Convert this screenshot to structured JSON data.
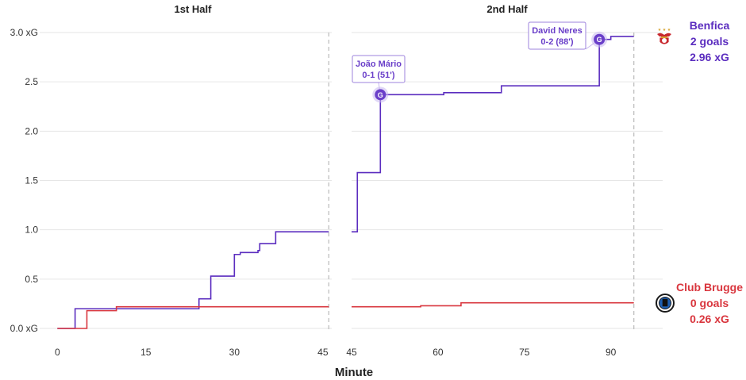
{
  "chart_data": {
    "type": "line",
    "step": true,
    "xlabel": "Minute",
    "panels": [
      {
        "title": "1st Half",
        "xlim": [
          -3,
          46.5
        ],
        "xticks": [
          "0",
          "15",
          "30",
          "45"
        ],
        "xtick_values": [
          0,
          15,
          30,
          45
        ],
        "end_minute": 46,
        "series": [
          {
            "team": "Benfica",
            "points": [
              [
                0,
                0
              ],
              [
                3,
                0.2
              ],
              [
                10,
                0.2
              ],
              [
                24,
                0.3
              ],
              [
                26,
                0.53
              ],
              [
                30,
                0.75
              ],
              [
                31,
                0.77
              ],
              [
                34,
                0.79
              ],
              [
                34.3,
                0.86
              ],
              [
                37,
                0.98
              ],
              [
                46,
                0.98
              ]
            ]
          },
          {
            "team": "Club Brugge",
            "points": [
              [
                0,
                0
              ],
              [
                5,
                0.18
              ],
              [
                10,
                0.22
              ],
              [
                46,
                0.22
              ]
            ]
          }
        ]
      },
      {
        "title": "2nd Half",
        "xlim": [
          45,
          99
        ],
        "xticks": [
          "45",
          "60",
          "75",
          "90"
        ],
        "xtick_values": [
          45,
          60,
          75,
          90
        ],
        "end_minute": 94,
        "series": [
          {
            "team": "Benfica",
            "points": [
              [
                45,
                0.98
              ],
              [
                46,
                1.58
              ],
              [
                50,
                2.37
              ],
              [
                56,
                2.37
              ],
              [
                61,
                2.39
              ],
              [
                71,
                2.46
              ],
              [
                88,
                2.93
              ],
              [
                90,
                2.96
              ],
              [
                94,
                2.96
              ]
            ]
          },
          {
            "team": "Club Brugge",
            "points": [
              [
                45,
                0.22
              ],
              [
                57,
                0.23
              ],
              [
                64,
                0.26
              ],
              [
                94,
                0.26
              ]
            ]
          }
        ]
      }
    ],
    "yticks": [
      "0.0 xG",
      "0.5",
      "1.0",
      "1.5",
      "2.0",
      "2.5",
      "3.0 xG"
    ],
    "ytick_values": [
      0,
      0.5,
      1.0,
      1.5,
      2.0,
      2.5,
      3.0
    ],
    "ylim": [
      0,
      3.1
    ],
    "grid": true,
    "goals": [
      {
        "panel": 1,
        "minute": 50,
        "xg": 2.37,
        "marker": "G",
        "label_line1": "João Mário",
        "label_line2": "0-1 (51')"
      },
      {
        "panel": 1,
        "minute": 88,
        "xg": 2.93,
        "marker": "G",
        "label_line1": "David Neres",
        "label_line2": "0-2 (88')"
      }
    ],
    "teams": [
      {
        "name": "Benfica",
        "goals": "2 goals",
        "xg": "2.96 xG",
        "color": "#5b2dbf",
        "logo": "benfica-crest-icon",
        "final_xg": 2.96
      },
      {
        "name": "Club Brugge",
        "goals": "0 goals",
        "xg": "0.26 xG",
        "color": "#d9363e",
        "logo": "club-brugge-crest-icon",
        "final_xg": 0.26
      }
    ]
  }
}
